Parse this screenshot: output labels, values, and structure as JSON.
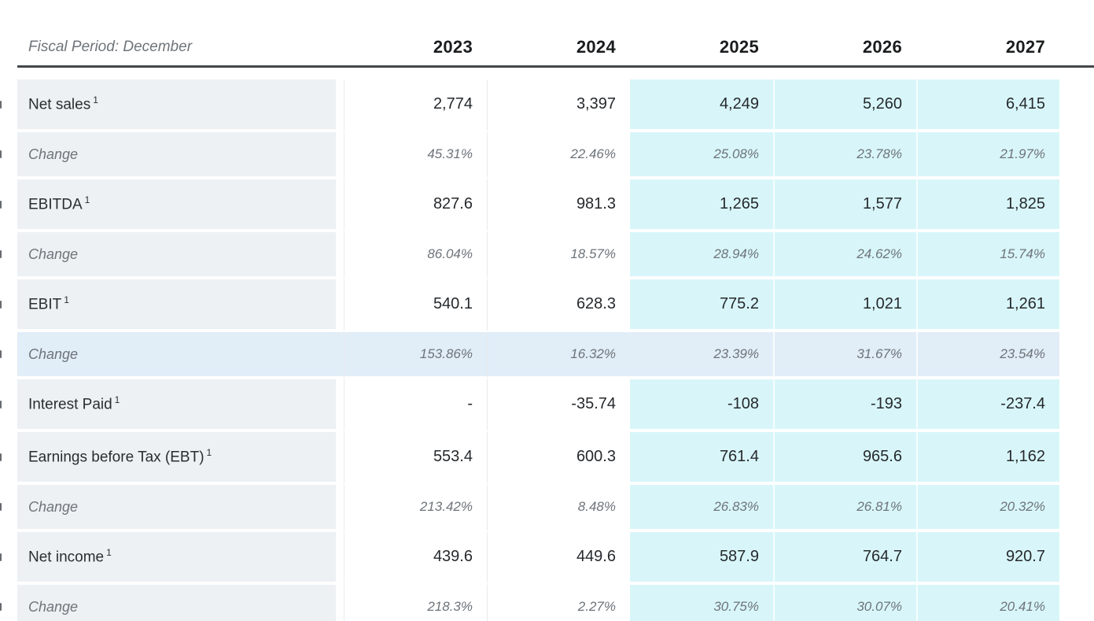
{
  "header": {
    "fiscal_period_label": "Fiscal Period: December",
    "years": [
      "2023",
      "2024",
      "2025",
      "2026",
      "2027"
    ]
  },
  "rows": [
    {
      "label": "Net sales",
      "footnote": "1",
      "type": "metric",
      "values": [
        "2,774",
        "3,397",
        "4,249",
        "5,260",
        "6,415"
      ]
    },
    {
      "label": "Change",
      "type": "change",
      "values": [
        "45.31%",
        "22.46%",
        "25.08%",
        "23.78%",
        "21.97%"
      ]
    },
    {
      "label": "EBITDA",
      "footnote": "1",
      "type": "metric",
      "values": [
        "827.6",
        "981.3",
        "1,265",
        "1,577",
        "1,825"
      ]
    },
    {
      "label": "Change",
      "type": "change",
      "values": [
        "86.04%",
        "18.57%",
        "28.94%",
        "24.62%",
        "15.74%"
      ]
    },
    {
      "label": "EBIT",
      "footnote": "1",
      "type": "metric",
      "values": [
        "540.1",
        "628.3",
        "775.2",
        "1,021",
        "1,261"
      ]
    },
    {
      "label": "Change",
      "type": "change",
      "highlighted": true,
      "values": [
        "153.86%",
        "16.32%",
        "23.39%",
        "31.67%",
        "23.54%"
      ]
    },
    {
      "label": "Interest Paid",
      "footnote": "1",
      "type": "metric",
      "values": [
        "-",
        "-35.74",
        "-108",
        "-193",
        "-237.4"
      ]
    },
    {
      "label": "Earnings before Tax (EBT)",
      "footnote": "1",
      "type": "metric",
      "values": [
        "553.4",
        "600.3",
        "761.4",
        "965.6",
        "1,162"
      ]
    },
    {
      "label": "Change",
      "type": "change",
      "values": [
        "213.42%",
        "8.48%",
        "26.83%",
        "26.81%",
        "20.32%"
      ]
    },
    {
      "label": "Net income",
      "footnote": "1",
      "type": "metric",
      "values": [
        "439.6",
        "449.6",
        "587.9",
        "764.7",
        "920.7"
      ]
    },
    {
      "label": "Change",
      "type": "change",
      "values": [
        "218.3%",
        "2.27%",
        "30.75%",
        "30.07%",
        "20.41%"
      ]
    }
  ],
  "colors": {
    "label_column_bg": "#edf1f4",
    "estimate_columns_bg": "#d8f6f9",
    "highlight_row_bg": "#e1edf7",
    "header_underline": "#43474c",
    "metric_text": "#26292c",
    "change_text": "#6e747a"
  }
}
